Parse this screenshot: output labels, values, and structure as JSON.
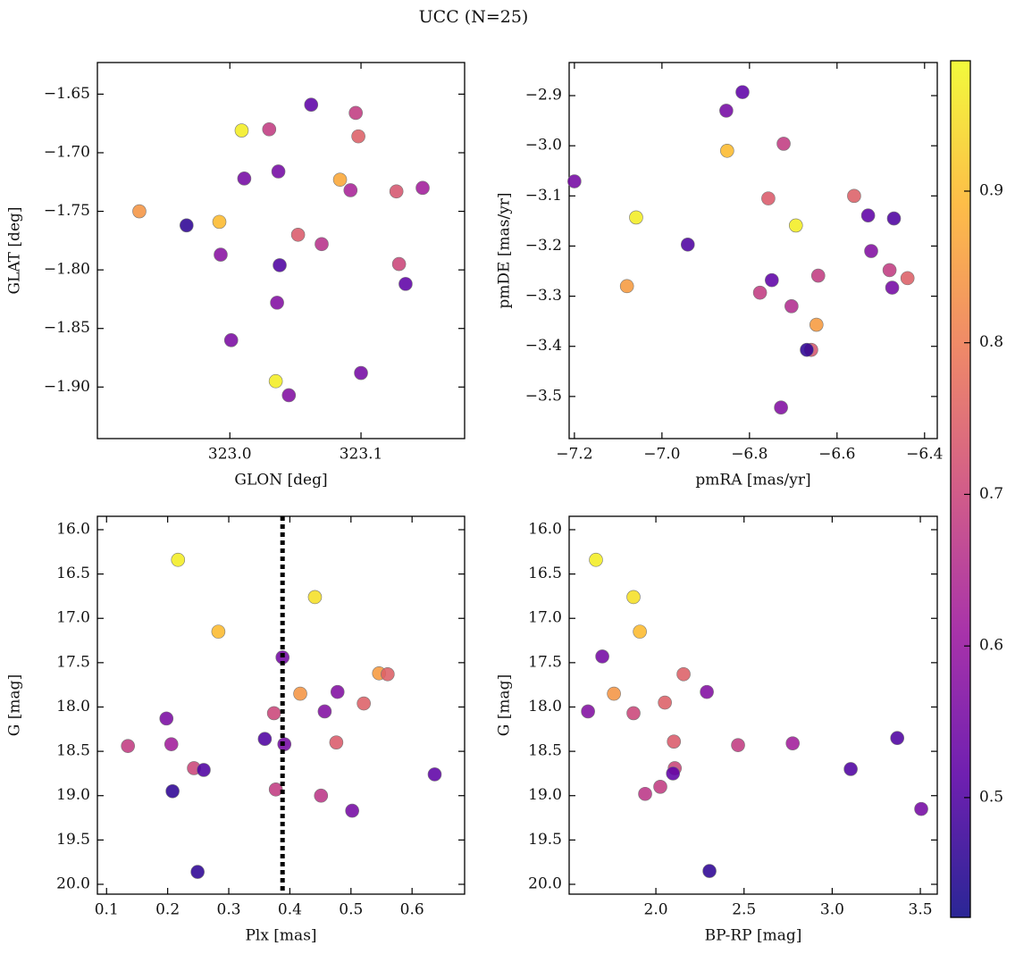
{
  "title": "UCC (N=25)",
  "chart_data": [
    {
      "type": "scatter",
      "xlabel": "GLON [deg]",
      "ylabel": "GLAT [deg]",
      "xlim": [
        322.899,
        323.179
      ],
      "ylim": [
        -1.944,
        -1.623
      ],
      "xticks": [
        {
          "value": 323.0,
          "label": "323.0"
        },
        323.1
      ],
      "yticks": [
        {
          "value": -1.65,
          "label": "−1.65"
        },
        {
          "value": -1.7,
          "label": "−1.70"
        },
        {
          "value": -1.75,
          "label": "−1.75"
        },
        {
          "value": -1.8,
          "label": "−1.80"
        },
        {
          "value": -1.85,
          "label": "−1.85"
        },
        {
          "value": -1.9,
          "label": "−1.90"
        }
      ],
      "x": [
        323.062,
        323.096,
        323.009,
        323.03,
        323.098,
        323.011,
        323.037,
        323.084,
        323.092,
        323.127,
        323.147,
        322.931,
        322.967,
        322.992,
        323.052,
        323.07,
        322.993,
        323.038,
        323.129,
        323.134,
        323.036,
        323.001,
        323.1,
        323.035,
        323.045
      ],
      "values": [
        -1.659,
        -1.666,
        -1.681,
        -1.68,
        -1.686,
        -1.722,
        -1.716,
        -1.723,
        -1.732,
        -1.733,
        -1.73,
        -1.75,
        -1.762,
        -1.759,
        -1.77,
        -1.778,
        -1.787,
        -1.796,
        -1.795,
        -1.812,
        -1.828,
        -1.86,
        -1.888,
        -1.895,
        -1.907
      ],
      "color_values": [
        0.52,
        0.68,
        0.97,
        0.68,
        0.75,
        0.55,
        0.55,
        0.87,
        0.63,
        0.73,
        0.62,
        0.84,
        0.46,
        0.9,
        0.74,
        0.66,
        0.58,
        0.5,
        0.7,
        0.52,
        0.57,
        0.56,
        0.55,
        0.97,
        0.57
      ]
    },
    {
      "type": "scatter",
      "xlabel": "pmRA [mas/yr]",
      "ylabel": "pmDE [mas/yr]",
      "xlim": [
        -7.212,
        -6.371
      ],
      "ylim": [
        -3.584,
        -2.834
      ],
      "xticks": [
        {
          "value": -7.2,
          "label": "−7.2"
        },
        {
          "value": -7.0,
          "label": "−7.0"
        },
        {
          "value": -6.8,
          "label": "−6.8"
        },
        {
          "value": -6.6,
          "label": "−6.6"
        },
        {
          "value": -6.4,
          "label": "−6.4"
        }
      ],
      "yticks": [
        {
          "value": -2.9,
          "label": "−2.9"
        },
        {
          "value": -3.0,
          "label": "−3.0"
        },
        {
          "value": -3.1,
          "label": "−3.1"
        },
        {
          "value": -3.2,
          "label": "−3.2"
        },
        {
          "value": -3.3,
          "label": "−3.3"
        },
        {
          "value": -3.4,
          "label": "−3.4"
        },
        {
          "value": -3.5,
          "label": "−3.5"
        }
      ],
      "x": [
        -6.816,
        -6.853,
        -6.722,
        -6.851,
        -7.2,
        -6.561,
        -6.757,
        -6.529,
        -6.47,
        -7.059,
        -6.694,
        -6.941,
        -6.522,
        -7.08,
        -6.48,
        -6.439,
        -6.643,
        -6.749,
        -6.474,
        -6.776,
        -6.704,
        -6.647,
        -6.659,
        -6.669,
        -6.728
      ],
      "values": [
        -2.893,
        -2.93,
        -2.996,
        -3.01,
        -3.071,
        -3.1,
        -3.105,
        -3.139,
        -3.145,
        -3.143,
        -3.159,
        -3.197,
        -3.21,
        -3.28,
        -3.248,
        -3.264,
        -3.259,
        -3.268,
        -3.283,
        -3.293,
        -3.32,
        -3.357,
        -3.407,
        -3.407,
        -3.522
      ],
      "color_values": [
        0.52,
        0.55,
        0.68,
        0.9,
        0.55,
        0.75,
        0.74,
        0.52,
        0.5,
        0.97,
        0.97,
        0.5,
        0.57,
        0.85,
        0.68,
        0.75,
        0.68,
        0.52,
        0.55,
        0.68,
        0.65,
        0.85,
        0.73,
        0.46,
        0.57
      ]
    },
    {
      "type": "scatter",
      "xlabel": "Plx [mas]",
      "ylabel": "G [mag]",
      "xlim": [
        0.085,
        0.686
      ],
      "ylim": [
        20.111,
        15.849
      ],
      "vline": 0.388,
      "xticks": [
        0.1,
        0.2,
        0.3,
        0.4,
        0.5,
        0.6
      ],
      "yticks": [
        {
          "value": 16.0,
          "label": "16.0"
        },
        16.5,
        {
          "value": 17.0,
          "label": "17.0"
        },
        17.5,
        {
          "value": 18.0,
          "label": "18.0"
        },
        18.5,
        {
          "value": 19.0,
          "label": "19.0"
        },
        19.5,
        {
          "value": 20.0,
          "label": "20.0"
        }
      ],
      "x": [
        0.217,
        0.441,
        0.283,
        0.388,
        0.546,
        0.56,
        0.417,
        0.478,
        0.374,
        0.457,
        0.521,
        0.198,
        0.135,
        0.206,
        0.359,
        0.391,
        0.476,
        0.243,
        0.259,
        0.637,
        0.208,
        0.377,
        0.451,
        0.502,
        0.249
      ],
      "values": [
        16.34,
        16.76,
        17.15,
        17.44,
        17.62,
        17.63,
        17.85,
        17.83,
        18.07,
        18.05,
        17.96,
        18.13,
        18.44,
        18.42,
        18.36,
        18.42,
        18.4,
        18.69,
        18.71,
        18.76,
        18.95,
        18.93,
        19.0,
        19.17,
        19.86
      ],
      "color_values": [
        0.97,
        0.95,
        0.9,
        0.55,
        0.85,
        0.75,
        0.84,
        0.57,
        0.7,
        0.57,
        0.75,
        0.56,
        0.68,
        0.62,
        0.5,
        0.55,
        0.74,
        0.7,
        0.5,
        0.52,
        0.46,
        0.68,
        0.67,
        0.55,
        0.46
      ]
    },
    {
      "type": "scatter",
      "xlabel": "BP-RP [mag]",
      "ylabel": "G [mag]",
      "xlim": [
        1.508,
        3.596
      ],
      "ylim": [
        20.111,
        15.849
      ],
      "xticks": [
        {
          "value": 2.0,
          "label": "2.0"
        },
        2.5,
        {
          "value": 3.0,
          "label": "3.0"
        },
        3.5
      ],
      "yticks": [
        {
          "value": 16.0,
          "label": "16.0"
        },
        16.5,
        {
          "value": 17.0,
          "label": "17.0"
        },
        17.5,
        {
          "value": 18.0,
          "label": "18.0"
        },
        18.5,
        {
          "value": 19.0,
          "label": "19.0"
        },
        19.5,
        {
          "value": 20.0,
          "label": "20.0"
        }
      ],
      "x": [
        1.66,
        1.873,
        1.909,
        1.696,
        2.157,
        1.762,
        2.289,
        1.615,
        1.873,
        2.051,
        3.369,
        2.102,
        2.466,
        2.776,
        2.107,
        2.097,
        3.105,
        1.939,
        2.025,
        3.505,
        2.304
      ],
      "values": [
        16.34,
        16.76,
        17.15,
        17.43,
        17.63,
        17.85,
        17.83,
        18.05,
        18.07,
        17.95,
        18.35,
        18.39,
        18.43,
        18.41,
        18.69,
        18.75,
        18.7,
        18.98,
        18.9,
        19.15,
        19.85
      ],
      "color_values": [
        0.97,
        0.95,
        0.9,
        0.55,
        0.75,
        0.84,
        0.57,
        0.57,
        0.7,
        0.75,
        0.5,
        0.74,
        0.68,
        0.62,
        0.7,
        0.52,
        0.5,
        0.67,
        0.68,
        0.55,
        0.46
      ]
    }
  ],
  "colorbar": {
    "type": "colorbar",
    "clim": [
      0.421,
      0.986
    ],
    "ticks": [
      0.5,
      0.6,
      0.7,
      0.8,
      0.9
    ],
    "colormap": [
      "#0d0887",
      "#5c01a6",
      "#9c179e",
      "#cc4778",
      "#ed7953",
      "#fdb42f",
      "#f0f921"
    ]
  }
}
